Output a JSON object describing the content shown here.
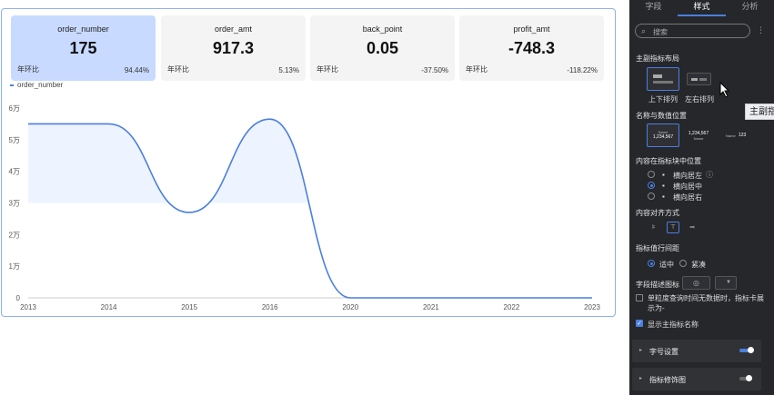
{
  "metrics": [
    {
      "name": "order_number",
      "value": "175",
      "compare_label": "年环比",
      "change": "94.44%"
    },
    {
      "name": "order_amt",
      "value": "917.3",
      "compare_label": "年环比",
      "change": "5.13%"
    },
    {
      "name": "back_point",
      "value": "0.05",
      "compare_label": "年环比",
      "change": "-37.50%"
    },
    {
      "name": "profit_amt",
      "value": "-748.3",
      "compare_label": "年环比",
      "change": "-118.22%"
    }
  ],
  "chart_data": {
    "type": "area",
    "series": [
      {
        "name": "order_number",
        "values": [
          55000,
          55000,
          27000,
          56500,
          0,
          0,
          0,
          0
        ]
      }
    ],
    "categories": [
      "2013",
      "2014",
      "2015",
      "2016",
      "2020",
      "2021",
      "2022",
      "2023"
    ],
    "y_ticks": [
      "0",
      "1万",
      "2万",
      "3万",
      "4万",
      "5万",
      "6万"
    ],
    "ylim": [
      0,
      60000
    ],
    "reference_value": 30000,
    "legend": "top-left",
    "color": "#4a7fe0"
  },
  "panel": {
    "tabs": [
      "字段",
      "样式",
      "分析"
    ],
    "active_tab": "样式",
    "search_placeholder": "搜索",
    "layout_title": "主副指标布局",
    "layout_options": [
      "上下排列",
      "左右排列"
    ],
    "position_title": "名称与数值位置",
    "position_thumbs": [
      {
        "name": "Name",
        "value": "1,234,567"
      },
      {
        "name": "Name",
        "value": "1,234,567"
      },
      {
        "name": "Name",
        "value": "123"
      }
    ],
    "content_pos_title": "内容在指标块中位置",
    "content_pos_options": [
      "横向居左",
      "横向居中",
      "横向居右"
    ],
    "content_pos_selected": "横向居中",
    "align_title": "内容对齐方式",
    "spacing_title": "指标值行间距",
    "spacing_options": [
      "适中",
      "紧凑"
    ],
    "spacing_selected": "适中",
    "desc_icon_title": "字段描述图标",
    "empty_text": "单粒度查询时间无数据时，指标卡展示为-",
    "show_main_name": "显示主指标名称",
    "font_settings": "字号设置",
    "decoration": "指标修饰图"
  },
  "tooltip": "主副指"
}
